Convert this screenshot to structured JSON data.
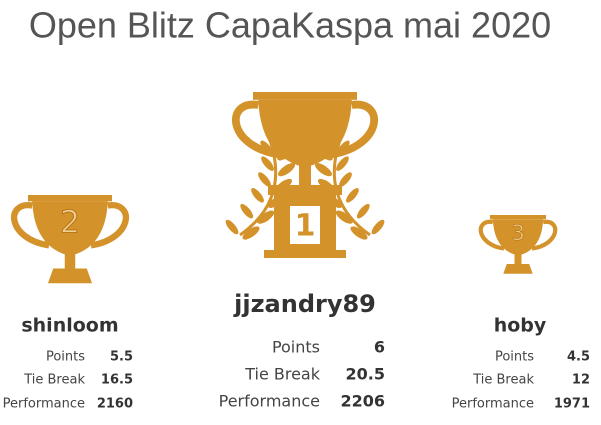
{
  "title": "Open Blitz CapaKaspa mai 2020",
  "podium": [
    {
      "rank": 2,
      "name": "shinloom",
      "stats": [
        {
          "label": "Points",
          "value": 5.5
        },
        {
          "label": "Tie Break",
          "value": 16.5
        },
        {
          "label": "Performance",
          "value": 2160
        }
      ]
    },
    {
      "rank": 1,
      "name": "jjzandry89",
      "stats": [
        {
          "label": "Points",
          "value": 6
        },
        {
          "label": "Tie Break",
          "value": 20.5
        },
        {
          "label": "Performance",
          "value": 2206
        }
      ]
    },
    {
      "rank": 3,
      "name": "hoby",
      "stats": [
        {
          "label": "Points",
          "value": 4.5
        },
        {
          "label": "Tie Break",
          "value": 12
        },
        {
          "label": "Performance",
          "value": 1971
        }
      ]
    }
  ]
}
